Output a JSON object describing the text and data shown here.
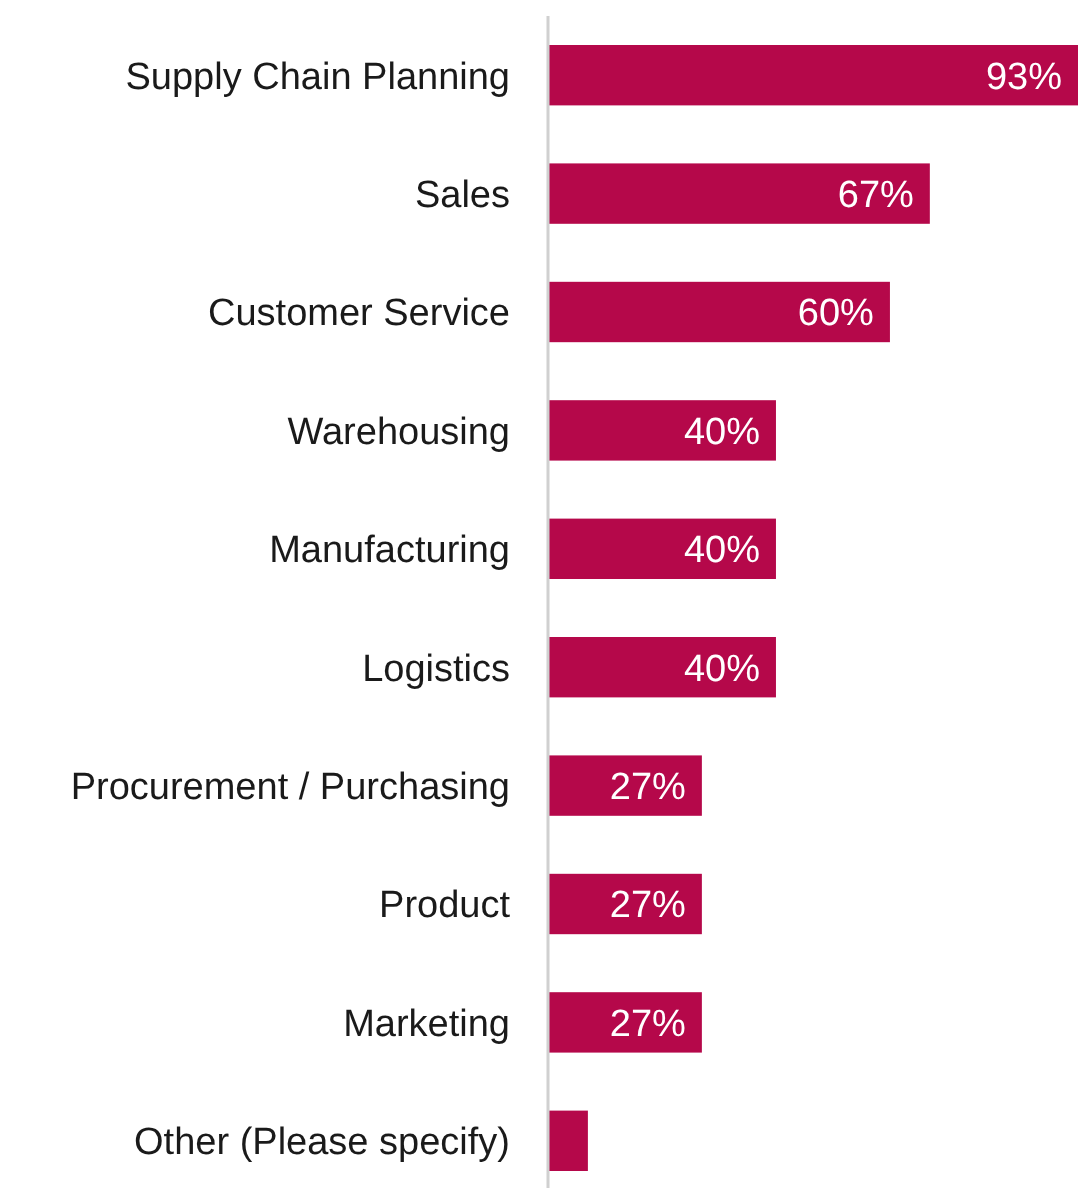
{
  "chart_data": {
    "type": "bar",
    "orientation": "horizontal",
    "categories": [
      "Supply Chain Planning",
      "Sales",
      "Customer Service",
      "Warehousing",
      "Manufacturing",
      "Logistics",
      "Procurement / Purchasing",
      "Product",
      "Marketing",
      "Other (Please specify)"
    ],
    "values": [
      93,
      67,
      60,
      40,
      40,
      40,
      27,
      27,
      27,
      7
    ],
    "value_labels": [
      "93%",
      "67%",
      "60%",
      "40%",
      "40%",
      "40%",
      "27%",
      "27%",
      "27%",
      null
    ],
    "color": "#b5084a"
  }
}
